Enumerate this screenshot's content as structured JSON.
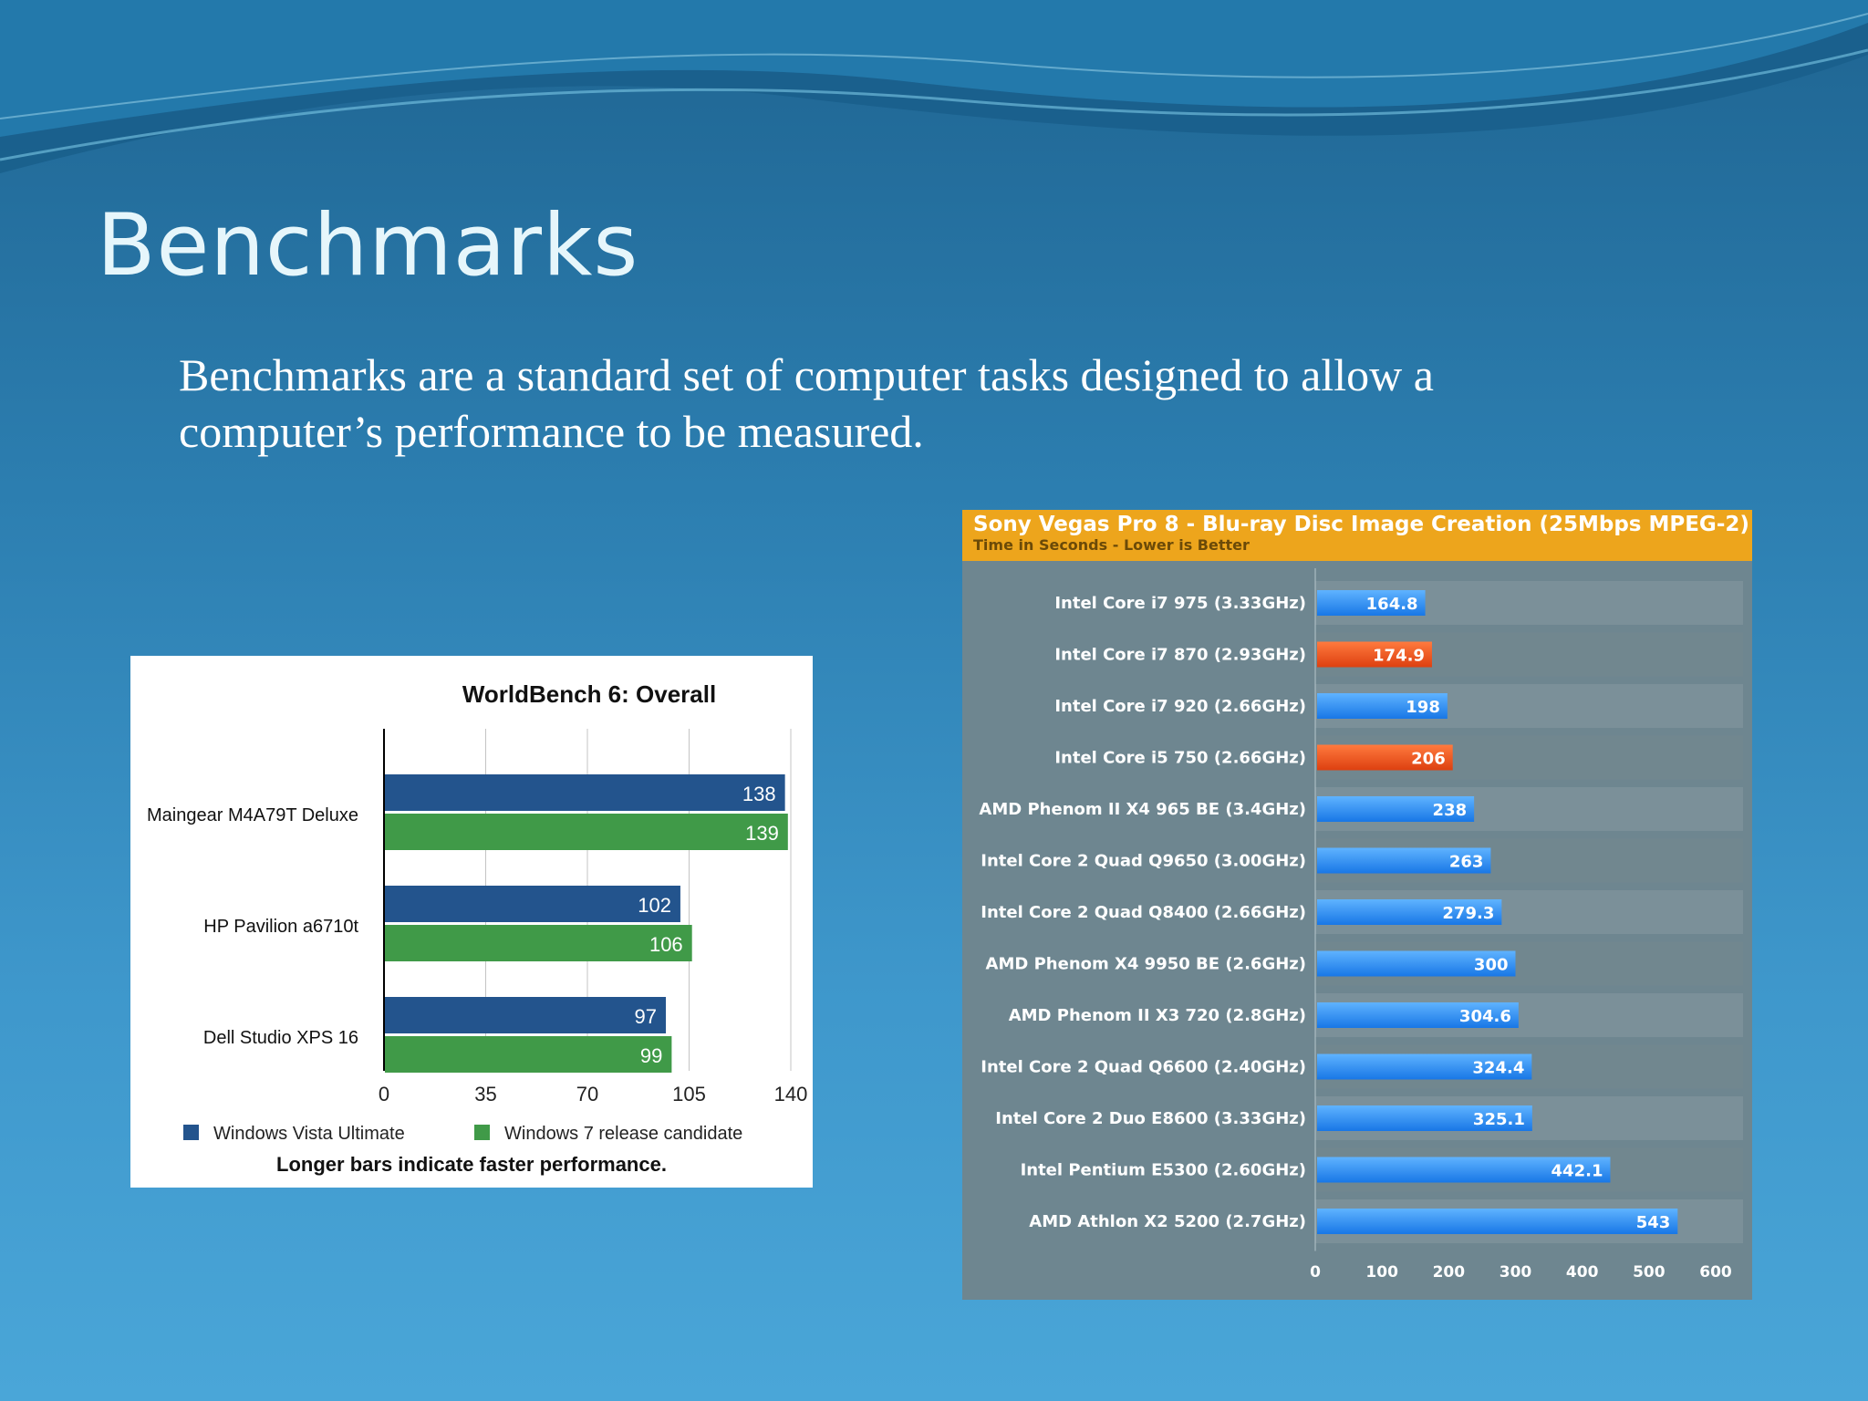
{
  "slide": {
    "title": "Benchmarks",
    "body": "Benchmarks are a standard set of computer tasks designed to allow a computer’s performance to be measured."
  },
  "colors": {
    "vista_series": "#23548d",
    "win7_series": "#409a48",
    "sony_blue_bar": "#2e8ff0",
    "sony_orange_bar": "#ef541e",
    "sony_header": "#eda51c"
  },
  "chart_data": [
    {
      "type": "bar",
      "orientation": "horizontal",
      "title": "WorldBench 6: Overall",
      "categories": [
        "Maingear M4A79T Deluxe",
        "HP Pavilion a6710t",
        "Dell Studio XPS 16"
      ],
      "series": [
        {
          "name": "Windows Vista Ultimate",
          "values": [
            138,
            102,
            97
          ]
        },
        {
          "name": "Windows 7 release candidate",
          "values": [
            139,
            106,
            99
          ]
        }
      ],
      "xlim": [
        0,
        140
      ],
      "xticks": [
        "0",
        "35",
        "70",
        "105",
        "140"
      ],
      "grid": true,
      "legend": "bottom",
      "caption": "Longer bars indicate faster performance."
    },
    {
      "type": "bar",
      "orientation": "horizontal",
      "title": "Sony Vegas Pro 8 - Blu-ray Disc Image Creation (25Mbps MPEG-2)",
      "subtitle": "Time in Seconds - Lower is Better",
      "categories": [
        "Intel Core i7 975 (3.33GHz)",
        "Intel Core i7 870 (2.93GHz)",
        "Intel Core i7 920 (2.66GHz)",
        "Intel Core i5 750 (2.66GHz)",
        "AMD Phenom II X4 965 BE (3.4GHz)",
        "Intel Core 2 Quad Q9650 (3.00GHz)",
        "Intel Core 2 Quad Q8400 (2.66GHz)",
        "AMD Phenom X4 9950 BE (2.6GHz)",
        "AMD Phenom II X3 720 (2.8GHz)",
        "Intel Core 2 Quad Q6600 (2.40GHz)",
        "Intel Core 2 Duo E8600 (3.33GHz)",
        "Intel Pentium E5300 (2.60GHz)",
        "AMD Athlon X2 5200 (2.7GHz)"
      ],
      "values": [
        164.8,
        174.9,
        198,
        206,
        238,
        263,
        279.3,
        300,
        304.6,
        324.4,
        325.1,
        442.1,
        543
      ],
      "value_labels": [
        "164.8",
        "174.9",
        "198",
        "206",
        "238",
        "263",
        "279.3",
        "300",
        "304.6",
        "324.4",
        "325.1",
        "442.1",
        "543"
      ],
      "highlighted": [
        false,
        true,
        false,
        true,
        false,
        false,
        false,
        false,
        false,
        false,
        false,
        false,
        false
      ],
      "xlim": [
        0,
        600
      ],
      "xticks": [
        "0",
        "100",
        "200",
        "300",
        "400",
        "500",
        "600"
      ],
      "grid": false,
      "legend": "none"
    }
  ]
}
